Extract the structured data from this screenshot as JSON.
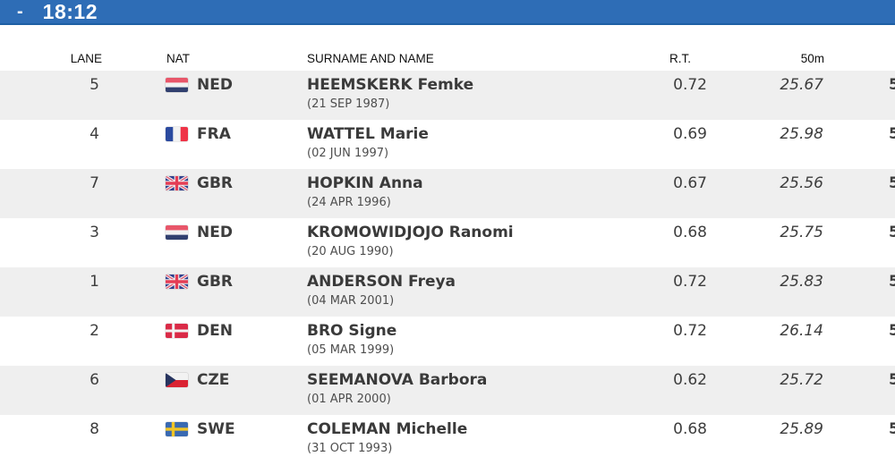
{
  "header_bar": {
    "dash": "-",
    "time": "18:12"
  },
  "colors": {
    "bar_blue": "#2e6db6",
    "bar_border": "#1e5fa4",
    "alt_row": "#efefef",
    "body_text": "#3d3d3d"
  },
  "table": {
    "columns": {
      "lane": "LANE",
      "nat": "NAT",
      "name": "SURNAME AND NAME",
      "rt": "R.T.",
      "split50": "50m"
    },
    "rows": [
      {
        "lane": "5",
        "nat": "NED",
        "name": "HEEMSKERK Femke",
        "dob": "(21 SEP 1987)",
        "rt": "0.72",
        "split50": "25.67",
        "clipped": "5"
      },
      {
        "lane": "4",
        "nat": "FRA",
        "name": "WATTEL Marie",
        "dob": "(02 JUN 1997)",
        "rt": "0.69",
        "split50": "25.98",
        "clipped": "5"
      },
      {
        "lane": "7",
        "nat": "GBR",
        "name": "HOPKIN Anna",
        "dob": "(24 APR 1996)",
        "rt": "0.67",
        "split50": "25.56",
        "clipped": "5"
      },
      {
        "lane": "3",
        "nat": "NED",
        "name": "KROMOWIDJOJO Ranomi",
        "dob": "(20 AUG 1990)",
        "rt": "0.68",
        "split50": "25.75",
        "clipped": "5"
      },
      {
        "lane": "1",
        "nat": "GBR",
        "name": "ANDERSON Freya",
        "dob": "(04 MAR 2001)",
        "rt": "0.72",
        "split50": "25.83",
        "clipped": "5"
      },
      {
        "lane": "2",
        "nat": "DEN",
        "name": "BRO Signe",
        "dob": "(05 MAR 1999)",
        "rt": "0.72",
        "split50": "26.14",
        "clipped": "5"
      },
      {
        "lane": "6",
        "nat": "CZE",
        "name": "SEEMANOVA Barbora",
        "dob": "(01 APR 2000)",
        "rt": "0.62",
        "split50": "25.72",
        "clipped": "5"
      },
      {
        "lane": "8",
        "nat": "SWE",
        "name": "COLEMAN Michelle",
        "dob": "(31 OCT 1993)",
        "rt": "0.68",
        "split50": "25.89",
        "clipped": "5"
      }
    ]
  }
}
